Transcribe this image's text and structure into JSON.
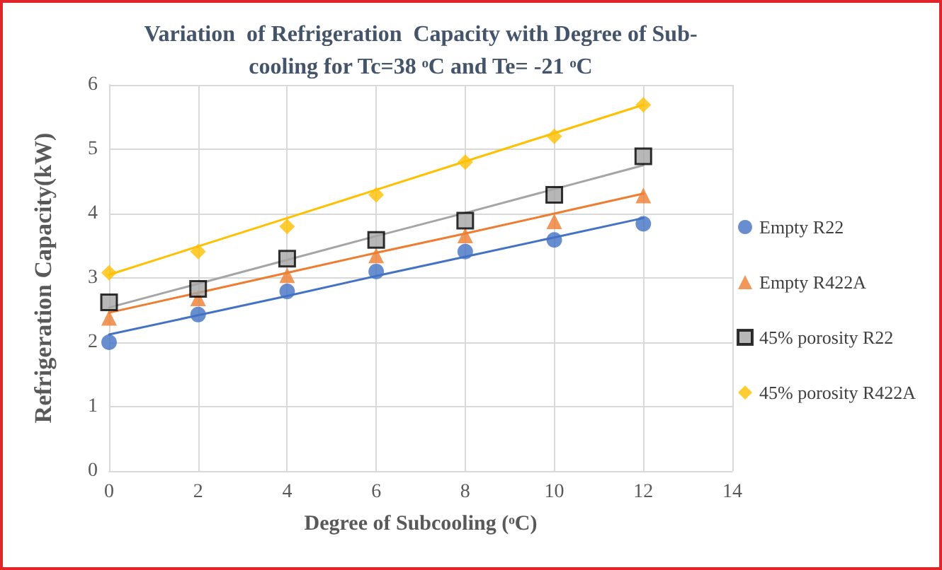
{
  "chart_data": {
    "type": "scatter",
    "title": "Variation  of Refrigeration  Capacity with Degree of Sub-\ncooling for Tc=38 ᵒC and Te= -21 ᵒC",
    "xlabel": "Degree of Subcooling (ᵒC)",
    "ylabel": "Refrigeration Capacity(kW)",
    "x": [
      0,
      2,
      4,
      6,
      8,
      10,
      12
    ],
    "series": [
      {
        "type": "line",
        "values": [
          2.12,
          2.42,
          2.72,
          3.03,
          3.33,
          3.63,
          3.93
        ],
        "color": "#4472c4",
        "marker": "none"
      },
      {
        "type": "line",
        "values": [
          2.46,
          2.77,
          3.08,
          3.39,
          3.69,
          4.0,
          4.31
        ],
        "color": "#ed7d31",
        "marker": "none"
      },
      {
        "type": "line",
        "values": [
          2.54,
          2.91,
          3.28,
          3.65,
          4.01,
          4.38,
          4.75
        ],
        "color": "#a5a5a5",
        "marker": "none"
      },
      {
        "type": "line",
        "values": [
          3.05,
          3.49,
          3.93,
          4.37,
          4.81,
          5.25,
          5.69
        ],
        "color": "#ffc000",
        "marker": "none"
      },
      {
        "name": "Empty R22",
        "color": "#4472c4",
        "marker": "circle",
        "values": [
          2.0,
          2.43,
          2.79,
          3.1,
          3.41,
          3.59,
          3.84
        ]
      },
      {
        "name": "Empty R422A",
        "color": "#ed7d31",
        "marker": "triangle",
        "values": [
          2.38,
          2.68,
          3.04,
          3.35,
          3.66,
          3.88,
          4.28
        ]
      },
      {
        "name": "45% porosity R22",
        "color": "#a5a5a5",
        "marker": "square",
        "values": [
          2.62,
          2.83,
          3.3,
          3.59,
          3.89,
          4.29,
          4.89
        ]
      },
      {
        "name": "45% porosity R422A",
        "color": "#ffc000",
        "marker": "diamond",
        "values": [
          3.08,
          3.41,
          3.8,
          4.29,
          4.8,
          5.2,
          5.69
        ]
      }
    ],
    "xlim": [
      0,
      14
    ],
    "xticks": [
      0,
      2,
      4,
      6,
      8,
      10,
      12,
      14
    ],
    "ylim": [
      0,
      6
    ],
    "yticks": [
      0,
      1,
      2,
      3,
      4,
      5,
      6
    ],
    "grid": true,
    "legend": "right"
  }
}
